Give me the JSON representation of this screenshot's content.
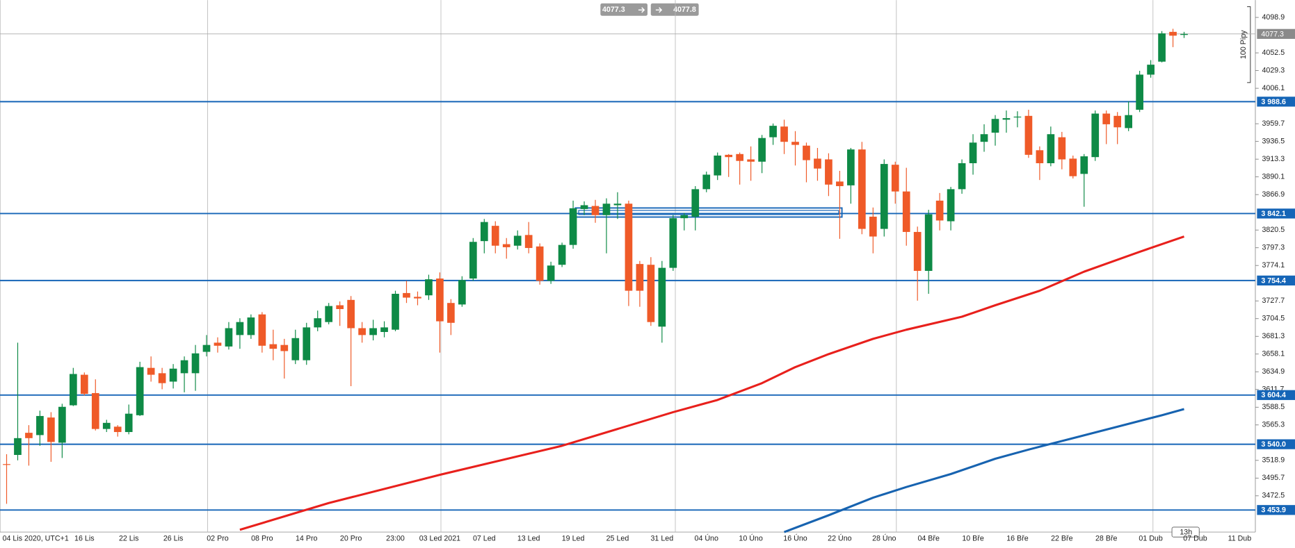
{
  "chart_data": {
    "type": "candlestick",
    "categories": [
      "04 Lis 2020, UTC+1",
      null,
      null,
      null,
      null,
      null,
      null,
      "16 Lis",
      null,
      null,
      null,
      "22 Lis",
      null,
      null,
      null,
      "26 Lis",
      null,
      null,
      null,
      "02 Pro",
      null,
      null,
      null,
      "08 Pro",
      null,
      null,
      null,
      "14 Pro",
      null,
      null,
      null,
      "20 Pro",
      null,
      null,
      null,
      "23:00",
      null,
      null,
      null,
      "03 Led 2021",
      null,
      null,
      null,
      "07 Led",
      null,
      null,
      null,
      "13 Led",
      null,
      null,
      null,
      "19 Led",
      null,
      null,
      null,
      "25 Led",
      null,
      null,
      null,
      "31 Led",
      null,
      null,
      null,
      "04 Úno",
      null,
      null,
      null,
      "10 Úno",
      null,
      null,
      null,
      "16 Úno",
      null,
      null,
      null,
      "22 Úno",
      null,
      null,
      null,
      "28 Úno",
      null,
      null,
      null,
      "04 Bře",
      null,
      null,
      null,
      "10 Bře",
      null,
      null,
      null,
      "16 Bře",
      null,
      null,
      null,
      "22 Bře",
      null,
      null,
      null,
      "28 Bře",
      null,
      null,
      null,
      "01 Dub",
      null,
      null,
      null,
      "07 Dub",
      null,
      null,
      null,
      "11 Dub"
    ],
    "open": [
      3514,
      3526,
      3555,
      3552,
      3575,
      3542,
      3591,
      3631,
      3607,
      3560,
      3563,
      3556,
      3578,
      3640,
      3633,
      3622,
      3633,
      3633,
      3661,
      3673,
      3668,
      3683,
      3683,
      3710,
      3671,
      3670,
      3650,
      3650,
      3693,
      3700,
      3722,
      3729,
      3692,
      3683,
      3687,
      3690,
      3738,
      3733,
      3735,
      3757,
      3725,
      3723,
      3757,
      3806,
      3826,
      3802,
      3800,
      3814,
      3799,
      3754,
      3775,
      3801,
      3848,
      3852,
      3840,
      3853,
      3855,
      3776,
      3775,
      3694,
      3771,
      3836,
      3838,
      3874,
      3892,
      3919,
      3920,
      3913,
      3910,
      3942,
      3956,
      3936,
      3931,
      3914,
      3913,
      3884,
      3879,
      3926,
      3838,
      3822,
      3906,
      3871,
      3818,
      3767,
      3859,
      3832,
      3874,
      3908,
      3936,
      3948,
      3965,
      3968,
      3970,
      3925,
      3908,
      3942,
      3914,
      3894,
      3916,
      3973,
      3970,
      3954,
      3978,
      4024,
      4041,
      4080,
      4076,
      null,
      null,
      null,
      null,
      null
    ],
    "high": [
      3527,
      3673,
      3565,
      3584,
      3582,
      3593,
      3640,
      3634,
      3625,
      3572,
      3565,
      3592,
      3648,
      3655,
      3640,
      3645,
      3655,
      3670,
      3683,
      3680,
      3700,
      3705,
      3710,
      3713,
      3690,
      3678,
      3690,
      3699,
      3715,
      3725,
      3727,
      3734,
      3700,
      3703,
      3701,
      3741,
      3754,
      3740,
      3762,
      3765,
      3730,
      3760,
      3810,
      3835,
      3832,
      3810,
      3820,
      3831,
      3803,
      3779,
      3804,
      3859,
      3858,
      3860,
      3862,
      3870,
      3859,
      3780,
      3785,
      3780,
      3840,
      3843,
      3878,
      3897,
      3922,
      3920,
      3922,
      3930,
      3945,
      3960,
      3965,
      3950,
      3935,
      3928,
      3921,
      3898,
      3928,
      3936,
      3850,
      3913,
      3910,
      3902,
      3825,
      3847,
      3869,
      3877,
      3913,
      3946,
      3959,
      3971,
      3977,
      3976,
      3978,
      3930,
      3956,
      3949,
      3918,
      3920,
      3977,
      3977,
      3975,
      3989,
      4029,
      4043,
      4081,
      4084,
      4080,
      null,
      null,
      null,
      null,
      null
    ],
    "low": [
      3462,
      3519,
      3512,
      3538,
      3517,
      3522,
      3590,
      3604,
      3558,
      3556,
      3550,
      3553,
      3577,
      3622,
      3612,
      3613,
      3608,
      3610,
      3655,
      3660,
      3664,
      3665,
      3678,
      3660,
      3650,
      3626,
      3645,
      3644,
      3688,
      3697,
      3695,
      3616,
      3673,
      3676,
      3680,
      3688,
      3725,
      3722,
      3729,
      3660,
      3683,
      3720,
      3754,
      3790,
      3790,
      3783,
      3795,
      3790,
      3749,
      3750,
      3772,
      3796,
      3840,
      3830,
      3790,
      3835,
      3721,
      3720,
      3695,
      3673,
      3767,
      3820,
      3820,
      3870,
      3886,
      3890,
      3880,
      3885,
      3895,
      3932,
      3920,
      3905,
      3883,
      3885,
      3865,
      3809,
      3855,
      3815,
      3790,
      3812,
      3855,
      3800,
      3728,
      3737,
      3820,
      3820,
      3868,
      3893,
      3923,
      3931,
      3948,
      3955,
      3915,
      3886,
      3904,
      3900,
      3888,
      3851,
      3911,
      3933,
      3933,
      3950,
      3975,
      4020,
      4040,
      4060,
      4072,
      null,
      null,
      null,
      null,
      null
    ],
    "close": [
      3513,
      3548,
      3548,
      3577,
      3543,
      3589,
      3632,
      3606,
      3560,
      3568,
      3556,
      3580,
      3641,
      3631,
      3620,
      3639,
      3650,
      3659,
      3670,
      3669,
      3692,
      3700,
      3706,
      3669,
      3665,
      3662,
      3679,
      3693,
      3705,
      3721,
      3717,
      3692,
      3683,
      3692,
      3693,
      3737,
      3732,
      3731,
      3756,
      3701,
      3699,
      3755,
      3805,
      3831,
      3800,
      3798,
      3813,
      3797,
      3754,
      3774,
      3801,
      3849,
      3853,
      3840,
      3855,
      3855,
      3741,
      3741,
      3700,
      3771,
      3836,
      3840,
      3874,
      3893,
      3918,
      3916,
      3911,
      3910,
      3941,
      3957,
      3936,
      3932,
      3912,
      3901,
      3880,
      3878,
      3926,
      3822,
      3812,
      3907,
      3871,
      3818,
      3767,
      3841,
      3833,
      3874,
      3908,
      3935,
      3946,
      3966,
      3967,
      3969,
      3919,
      3908,
      3946,
      3913,
      3891,
      3917,
      3973,
      3959,
      3955,
      3971,
      4024,
      4037,
      4078,
      4075,
      4077.3,
      null,
      null,
      null,
      null,
      null
    ],
    "up_color": "#0e8a46",
    "down_color": "#ef5a28",
    "series": [
      {
        "color": "#e8201c",
        "x": [
          21,
          29,
          39,
          50,
          55,
          60,
          64,
          68,
          71,
          74,
          78,
          81,
          86,
          89,
          93,
          97,
          102,
          106
        ],
        "values": [
          3428,
          3463,
          3500,
          3538,
          3560,
          3582,
          3598,
          3620,
          3641,
          3658,
          3678,
          3690,
          3707,
          3722,
          3741,
          3766,
          3792,
          3812
        ]
      },
      {
        "color": "#1763b0",
        "x": [
          70,
          74,
          78,
          81,
          85,
          89,
          92,
          96,
          100,
          104,
          106
        ],
        "values": [
          3425,
          3447,
          3470,
          3484,
          3501,
          3521,
          3533,
          3548,
          3563,
          3578,
          3586
        ]
      }
    ],
    "ylim": [
      3425.0,
      4121.6
    ],
    "yticks": [
      4098.9,
      4052.5,
      4029.3,
      4006.1,
      3959.7,
      3936.5,
      3913.3,
      3890.1,
      3866.9,
      3820.5,
      3797.3,
      3774.1,
      3727.7,
      3704.5,
      3681.3,
      3658.1,
      3634.9,
      3611.7,
      3588.5,
      3565.3,
      3518.9,
      3495.7,
      3472.5
    ],
    "xgrid": [
      18.1,
      39.1,
      60.2,
      80.1,
      103.2
    ],
    "levels": [
      {
        "value": 3988.6,
        "label": "3 988.6"
      },
      {
        "value": 3842.1,
        "label": "3 842.1"
      },
      {
        "value": 3754.4,
        "label": "3 754.4"
      },
      {
        "value": 3604.4,
        "label": "3 604.4"
      },
      {
        "value": 3540.0,
        "label": "3 540.0"
      },
      {
        "value": 3453.9,
        "label": "3 453.9"
      }
    ],
    "level_color": "#1565b7",
    "last_price": 4077.3,
    "zone": {
      "x": [
        51.2,
        75.2
      ],
      "y": [
        3837.5,
        3849.4
      ]
    },
    "price_boxes": [
      "4077.3",
      "4077.8"
    ],
    "range_label": "100 Pipy",
    "time_tag": "13h"
  }
}
